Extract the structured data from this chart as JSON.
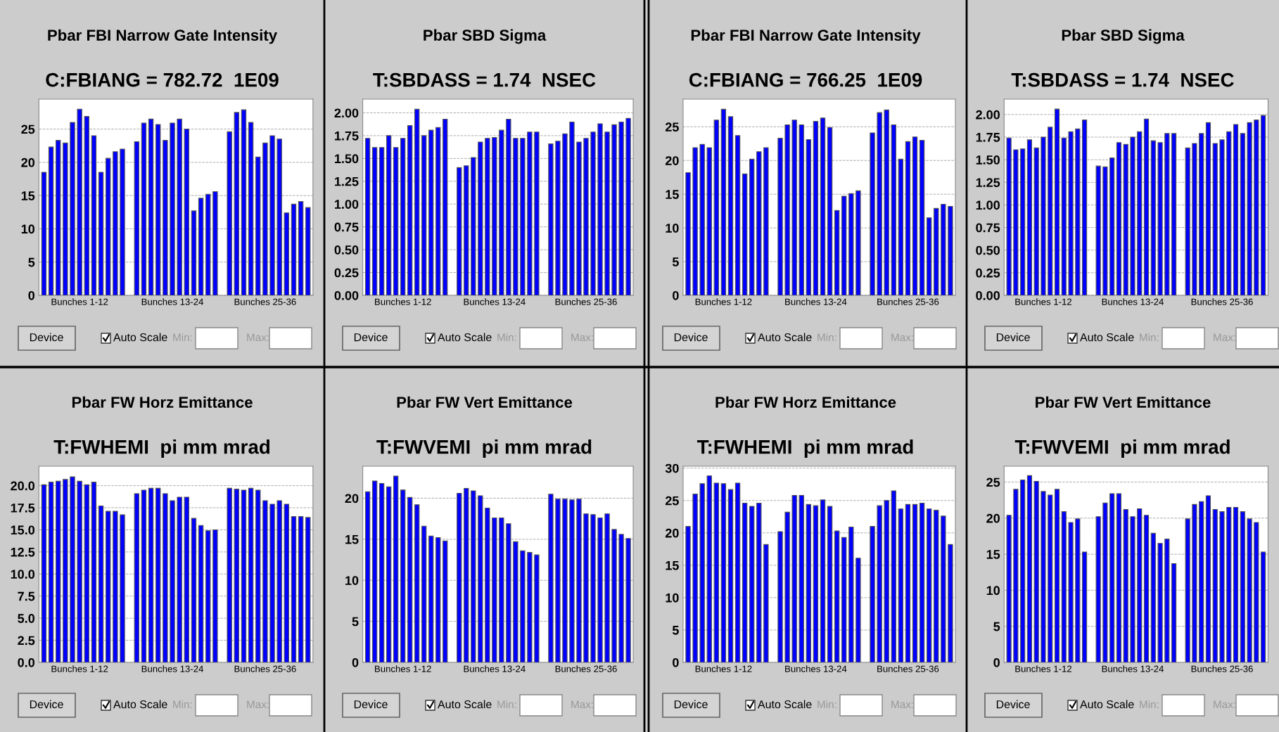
{
  "chart_data": [
    {
      "type": "bar",
      "title": "Pbar FBI Narrow Gate Intensity",
      "subtitle": "C:FBIANG = 782.72  1E09",
      "categories": [
        null,
        null,
        null,
        null,
        null,
        "Bunches 1-12",
        null,
        null,
        null,
        null,
        null,
        null,
        null,
        null,
        null,
        null,
        null,
        null,
        "Bunches 13-24",
        null,
        null,
        null,
        null,
        null,
        null,
        null,
        null,
        null,
        null,
        null,
        null,
        "Bunches 25-36",
        null,
        null,
        null,
        null,
        null,
        null
      ],
      "values": [
        18.5,
        22.3,
        23.3,
        22.9,
        26.0,
        28.0,
        26.9,
        24.0,
        18.5,
        20.6,
        21.6,
        22.0,
        null,
        23.1,
        25.9,
        26.5,
        25.7,
        23.3,
        25.9,
        26.5,
        25.0,
        12.7,
        14.6,
        15.2,
        15.6,
        null,
        24.6,
        27.5,
        27.9,
        26.0,
        20.8,
        22.9,
        24.0,
        23.5,
        12.4,
        13.7,
        14.1,
        13.2
      ],
      "color": "#0000ff",
      "ylim": [
        0,
        29.5
      ],
      "yticks": [
        0,
        5,
        10,
        15,
        20,
        25
      ],
      "grid": "y",
      "annotations": [
        "Device",
        "Auto Scale",
        "Min:",
        "Max:"
      ]
    },
    {
      "type": "bar",
      "title": "Pbar SBD Sigma",
      "subtitle": "T:SBDASS = 1.74  NSEC",
      "categories": [
        null,
        null,
        null,
        null,
        null,
        "Bunches 1-12",
        null,
        null,
        null,
        null,
        null,
        null,
        null,
        null,
        null,
        null,
        null,
        null,
        "Bunches 13-24",
        null,
        null,
        null,
        null,
        null,
        null,
        null,
        null,
        null,
        null,
        null,
        null,
        "Bunches 25-36",
        null,
        null,
        null,
        null,
        null,
        null
      ],
      "values": [
        1.72,
        1.62,
        1.62,
        1.75,
        1.62,
        1.72,
        1.86,
        2.04,
        1.75,
        1.81,
        1.84,
        1.93,
        null,
        1.4,
        1.42,
        1.51,
        1.68,
        1.72,
        1.73,
        1.81,
        1.93,
        1.72,
        1.72,
        1.79,
        1.79,
        null,
        1.66,
        1.69,
        1.77,
        1.9,
        1.68,
        1.72,
        1.79,
        1.88,
        1.79,
        1.87,
        1.9,
        1.94
      ],
      "color": "#0000ff",
      "ylim": [
        0,
        2.15
      ],
      "yticks": [
        {
          "value": 0,
          "label": "0.00"
        },
        {
          "value": 0.25,
          "label": "0.25"
        },
        {
          "value": 0.5,
          "label": "0.50"
        },
        {
          "value": 0.75,
          "label": "0.75"
        },
        {
          "value": 1,
          "label": "1.00"
        },
        {
          "value": 1.25,
          "label": "1.25"
        },
        {
          "value": 1.5,
          "label": "1.50"
        },
        {
          "value": 1.75,
          "label": "1.75"
        },
        {
          "value": 2,
          "label": "2.00"
        }
      ],
      "grid": "y",
      "annotations": [
        "Device",
        "Auto Scale",
        "Min:",
        "Max:"
      ]
    },
    {
      "type": "bar",
      "title": "Pbar FBI Narrow Gate Intensity",
      "subtitle": "C:FBIANG = 766.25  1E09",
      "categories": [
        null,
        null,
        null,
        null,
        null,
        "Bunches 1-12",
        null,
        null,
        null,
        null,
        null,
        null,
        null,
        null,
        null,
        null,
        null,
        null,
        "Bunches 13-24",
        null,
        null,
        null,
        null,
        null,
        null,
        null,
        null,
        null,
        null,
        null,
        null,
        "Bunches 25-36",
        null,
        null,
        null,
        null,
        null,
        null
      ],
      "values": [
        18.2,
        21.9,
        22.4,
        21.9,
        26.0,
        27.6,
        26.5,
        23.7,
        18.0,
        20.2,
        21.3,
        21.9,
        null,
        23.3,
        25.3,
        26.0,
        25.3,
        23.1,
        25.8,
        26.3,
        24.9,
        12.6,
        14.7,
        15.1,
        15.5,
        null,
        24.1,
        27.1,
        27.5,
        25.3,
        20.2,
        22.8,
        23.5,
        23.0,
        11.5,
        12.9,
        13.5,
        13.2
      ],
      "color": "#0000ff",
      "ylim": [
        0,
        29.1
      ],
      "yticks": [
        0,
        5,
        10,
        15,
        20,
        25
      ],
      "grid": "y",
      "annotations": [
        "Device",
        "Auto Scale",
        "Min:",
        "Max:"
      ]
    },
    {
      "type": "bar",
      "title": "Pbar SBD Sigma",
      "subtitle": "T:SBDASS = 1.74  NSEC",
      "categories": [
        null,
        null,
        null,
        null,
        null,
        "Bunches 1-12",
        null,
        null,
        null,
        null,
        null,
        null,
        null,
        null,
        null,
        null,
        null,
        null,
        "Bunches 13-24",
        null,
        null,
        null,
        null,
        null,
        null,
        null,
        null,
        null,
        null,
        null,
        null,
        "Bunches 25-36",
        null,
        null,
        null,
        null,
        null,
        null
      ],
      "values": [
        1.74,
        1.61,
        1.62,
        1.72,
        1.63,
        1.75,
        1.86,
        2.06,
        1.74,
        1.81,
        1.84,
        1.94,
        null,
        1.43,
        1.42,
        1.52,
        1.69,
        1.67,
        1.75,
        1.81,
        1.95,
        1.71,
        1.69,
        1.79,
        1.79,
        null,
        1.63,
        1.68,
        1.79,
        1.91,
        1.68,
        1.72,
        1.81,
        1.89,
        1.79,
        1.91,
        1.94,
        1.99
      ],
      "color": "#0000ff",
      "ylim": [
        0,
        2.17
      ],
      "yticks": [
        {
          "value": 0,
          "label": "0.00"
        },
        {
          "value": 0.25,
          "label": "0.25"
        },
        {
          "value": 0.5,
          "label": "0.50"
        },
        {
          "value": 0.75,
          "label": "0.75"
        },
        {
          "value": 1,
          "label": "1.00"
        },
        {
          "value": 1.25,
          "label": "1.25"
        },
        {
          "value": 1.5,
          "label": "1.50"
        },
        {
          "value": 1.75,
          "label": "1.75"
        },
        {
          "value": 2,
          "label": "2.00"
        }
      ],
      "grid": "y",
      "annotations": [
        "Device",
        "Auto Scale",
        "Min:",
        "Max:"
      ]
    },
    {
      "type": "bar",
      "title": "Pbar FW Horz Emittance",
      "subtitle": "T:FWHEMI  pi mm mrad",
      "categories": [
        null,
        null,
        null,
        null,
        null,
        "Bunches 1-12",
        null,
        null,
        null,
        null,
        null,
        null,
        null,
        null,
        null,
        null,
        null,
        null,
        "Bunches 13-24",
        null,
        null,
        null,
        null,
        null,
        null,
        null,
        null,
        null,
        null,
        null,
        null,
        "Bunches 25-36",
        null,
        null,
        null,
        null,
        null,
        null
      ],
      "values": [
        20.1,
        20.4,
        20.5,
        20.7,
        21.0,
        20.5,
        20.1,
        20.4,
        17.7,
        17.1,
        17.1,
        16.7,
        null,
        19.1,
        19.5,
        19.7,
        19.7,
        19.1,
        18.3,
        18.7,
        18.7,
        16.3,
        15.5,
        14.9,
        15.0,
        null,
        19.7,
        19.6,
        19.5,
        19.7,
        19.5,
        18.3,
        17.9,
        18.3,
        17.9,
        16.5,
        16.5,
        16.4
      ],
      "color": "#0000ff",
      "ylim": [
        0,
        22.2
      ],
      "yticks": [
        {
          "value": 0,
          "label": "0.0"
        },
        {
          "value": 2.5,
          "label": "2.5"
        },
        {
          "value": 5,
          "label": "5.0"
        },
        {
          "value": 7.5,
          "label": "7.5"
        },
        {
          "value": 10,
          "label": "10.0"
        },
        {
          "value": 12.5,
          "label": "12.5"
        },
        {
          "value": 15,
          "label": "15.0"
        },
        {
          "value": 17.5,
          "label": "17.5"
        },
        {
          "value": 20,
          "label": "20.0"
        }
      ],
      "grid": "y",
      "annotations": [
        "Device",
        "Auto Scale",
        "Min:",
        "Max:"
      ]
    },
    {
      "type": "bar",
      "title": "Pbar FW Vert Emittance",
      "subtitle": "T:FWVEMI  pi mm mrad",
      "categories": [
        null,
        null,
        null,
        null,
        null,
        "Bunches 1-12",
        null,
        null,
        null,
        null,
        null,
        null,
        null,
        null,
        null,
        null,
        null,
        null,
        "Bunches 13-24",
        null,
        null,
        null,
        null,
        null,
        null,
        null,
        null,
        null,
        null,
        null,
        null,
        "Bunches 25-36",
        null,
        null,
        null,
        null,
        null,
        null
      ],
      "values": [
        20.8,
        22.1,
        21.8,
        21.4,
        22.7,
        21.0,
        20.1,
        19.2,
        16.6,
        15.4,
        15.2,
        14.8,
        null,
        20.6,
        21.2,
        20.9,
        20.3,
        18.8,
        17.6,
        17.6,
        16.9,
        14.7,
        13.6,
        13.4,
        13.1,
        null,
        20.5,
        19.9,
        19.9,
        19.8,
        19.9,
        18.1,
        18.0,
        17.6,
        18.1,
        16.2,
        15.6,
        15.1
      ],
      "color": "#0000ff",
      "ylim": [
        0,
        23.9
      ],
      "yticks": [
        0,
        5,
        10,
        15,
        20
      ],
      "grid": "y",
      "annotations": [
        "Device",
        "Auto Scale",
        "Min:",
        "Max:"
      ]
    },
    {
      "type": "bar",
      "title": "Pbar FW Horz Emittance",
      "subtitle": "T:FWHEMI  pi mm mrad",
      "categories": [
        null,
        null,
        null,
        null,
        null,
        "Bunches 1-12",
        null,
        null,
        null,
        null,
        null,
        null,
        null,
        null,
        null,
        null,
        null,
        null,
        "Bunches 13-24",
        null,
        null,
        null,
        null,
        null,
        null,
        null,
        null,
        null,
        null,
        null,
        null,
        "Bunches 25-36",
        null,
        null,
        null,
        null,
        null,
        null
      ],
      "values": [
        21.0,
        26.0,
        27.6,
        28.8,
        27.7,
        27.6,
        26.7,
        27.7,
        24.6,
        24.1,
        24.6,
        18.2,
        null,
        20.2,
        23.2,
        25.8,
        25.8,
        24.4,
        24.2,
        25.1,
        24.1,
        20.3,
        19.3,
        20.9,
        16.1,
        null,
        21.0,
        24.2,
        25.0,
        26.5,
        23.7,
        24.4,
        24.4,
        24.6,
        23.7,
        23.5,
        22.6,
        18.2
      ],
      "color": "#0000ff",
      "ylim": [
        0,
        30.3
      ],
      "yticks": [
        0,
        5,
        10,
        15,
        20,
        25,
        30
      ],
      "grid": "y",
      "annotations": [
        "Device",
        "Auto Scale",
        "Min:",
        "Max:"
      ]
    },
    {
      "type": "bar",
      "title": "Pbar FW Vert Emittance",
      "subtitle": "T:FWVEMI  pi mm mrad",
      "categories": [
        null,
        null,
        null,
        null,
        null,
        "Bunches 1-12",
        null,
        null,
        null,
        null,
        null,
        null,
        null,
        null,
        null,
        null,
        null,
        null,
        "Bunches 13-24",
        null,
        null,
        null,
        null,
        null,
        null,
        null,
        null,
        null,
        null,
        null,
        null,
        "Bunches 25-36",
        null,
        null,
        null,
        null,
        null,
        null
      ],
      "values": [
        20.4,
        24.0,
        25.3,
        25.9,
        25.1,
        23.7,
        23.2,
        24.0,
        20.9,
        19.4,
        19.9,
        15.3,
        null,
        20.2,
        22.1,
        23.4,
        23.4,
        21.2,
        20.2,
        21.3,
        20.4,
        17.9,
        16.5,
        17.1,
        13.7,
        null,
        19.9,
        21.9,
        22.3,
        23.1,
        21.2,
        20.9,
        21.5,
        21.5,
        20.9,
        19.9,
        19.4,
        15.3
      ],
      "color": "#0000ff",
      "ylim": [
        0,
        27.2
      ],
      "yticks": [
        0,
        5,
        10,
        15,
        20,
        25
      ],
      "grid": "y",
      "annotations": [
        "Device",
        "Auto Scale",
        "Min:",
        "Max:"
      ]
    }
  ]
}
